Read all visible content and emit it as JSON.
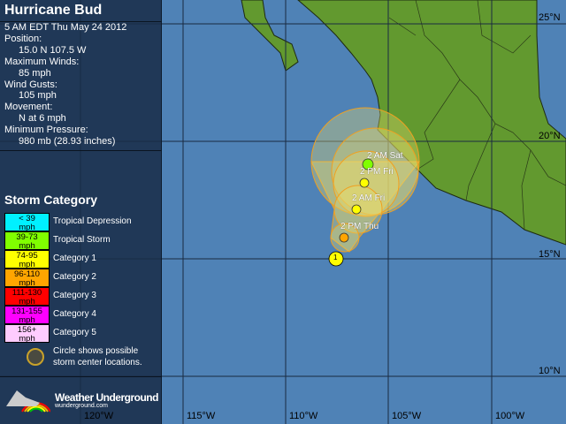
{
  "storm": {
    "name": "Hurricane Bud",
    "time": "5 AM EDT Thu May 24 2012",
    "position_label": "Position:",
    "position": "15.0 N 107.5 W",
    "max_winds_label": "Maximum Winds:",
    "max_winds": "85 mph",
    "gusts_label": "Wind Gusts:",
    "gusts": "105 mph",
    "movement_label": "Movement:",
    "movement": "N at 6 mph",
    "pressure_label": "Minimum Pressure:",
    "pressure": "980 mb (28.93 inches)"
  },
  "legend": {
    "title": "Storm Category",
    "items": [
      {
        "range": "< 39",
        "unit": "mph",
        "label": "Tropical Depression",
        "color": "#00f0ff"
      },
      {
        "range": "39-73",
        "unit": "mph",
        "label": "Tropical Storm",
        "color": "#80ff00"
      },
      {
        "range": "74-95",
        "unit": "mph",
        "label": "Category 1",
        "color": "#ffff00"
      },
      {
        "range": "96-110",
        "unit": "mph",
        "label": "Category 2",
        "color": "#ffa500"
      },
      {
        "range": "111-130",
        "unit": "mph",
        "label": "Category 3",
        "color": "#ff0000"
      },
      {
        "range": "131-155",
        "unit": "mph",
        "label": "Category 4",
        "color": "#ff00ff"
      },
      {
        "range": "156+",
        "unit": "mph",
        "label": "Category 5",
        "color": "#ffccff"
      }
    ],
    "circle_note_1": "Circle shows possible",
    "circle_note_2": "storm center locations."
  },
  "brand": {
    "name": "Weather Underground",
    "site": "wunderground.com"
  },
  "axes": {
    "lon": [
      "120°W",
      "115°W",
      "110°W",
      "105°W",
      "100°W"
    ],
    "lat": [
      "25°N",
      "20°N",
      "15°N",
      "10°N"
    ]
  },
  "track": {
    "current_category": "1",
    "forecast": [
      {
        "label": "2 PM Thu",
        "color": "#ffa500"
      },
      {
        "label": "2 AM Fri",
        "color": "#ffff00"
      },
      {
        "label": "2 PM Fri",
        "color": "#ffff00"
      },
      {
        "label": "2 AM Sat",
        "color": "#80ff00"
      }
    ]
  },
  "colors": {
    "ocean": "#4f82b6",
    "land": "#62992f",
    "cone": "#f0a020"
  }
}
